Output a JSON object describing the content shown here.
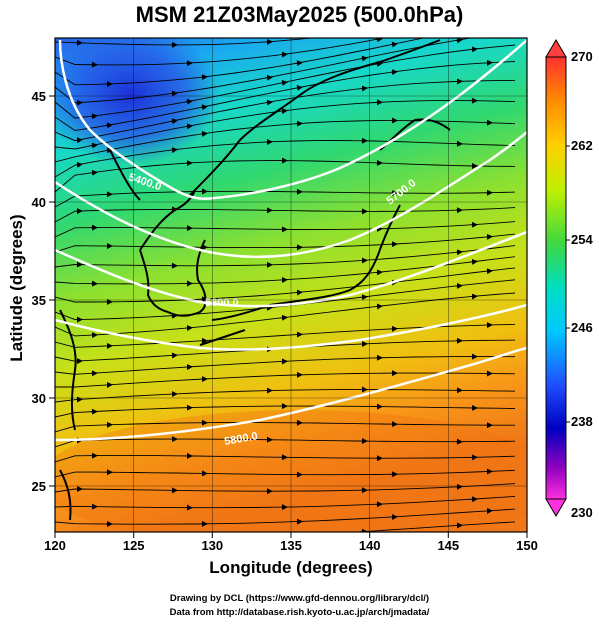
{
  "title": "MSM 21Z03May2025 (500.0hPa)",
  "x_axis": {
    "label": "Longitude (degrees)",
    "ticks": [
      "120",
      "125",
      "130",
      "135",
      "140",
      "145",
      "150"
    ],
    "range": [
      120,
      150
    ]
  },
  "y_axis": {
    "label": "Latitude  (degrees)",
    "ticks": [
      "25",
      "30",
      "35",
      "40",
      "45"
    ],
    "range": [
      22.4,
      47.6
    ]
  },
  "colorbar": {
    "min": "230",
    "max": "270",
    "labels": [
      "270",
      "262",
      "254",
      "246",
      "238",
      "230"
    ],
    "colors_top_to_bottom": [
      "#ff4040",
      "#ff8c00",
      "#ffd000",
      "#c0f000",
      "#40d840",
      "#00e0c0",
      "#00c8ff",
      "#2050ff",
      "#0000c0",
      "#9000c0",
      "#ff30e0"
    ]
  },
  "contour_labels": [
    "5400.0",
    "5700.0",
    "5800.0",
    "5600.0",
    "5800.0"
  ],
  "credits": {
    "line1": "Drawing by DCL (https://www.gfd-dennou.org/library/dcl/)",
    "line2": "Data from http://database.rish.kyoto-u.ac.jp/arch/jmadata/"
  }
}
